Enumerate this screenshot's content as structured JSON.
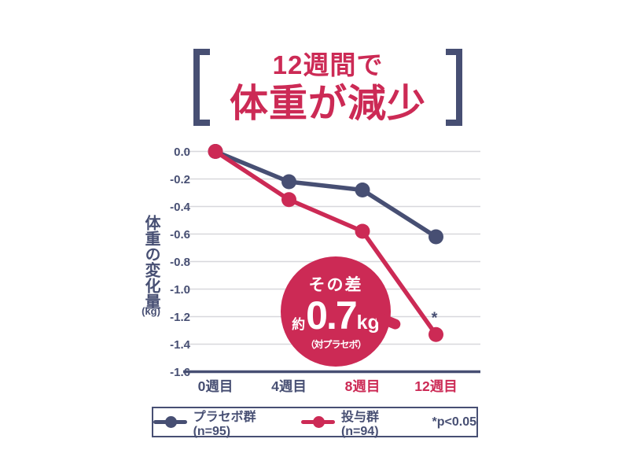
{
  "colors": {
    "navy": "#474f73",
    "crimson": "#cc2a55",
    "grid": "#d8d8dc",
    "background": "#ffffff"
  },
  "title": {
    "line1": "12週間で",
    "line2": "体重が減少"
  },
  "chart_data": {
    "type": "line",
    "categories": [
      "0週目",
      "4週目",
      "8週目",
      "12週目"
    ],
    "x_label_colors": [
      "#474f73",
      "#474f73",
      "#cc2a55",
      "#cc2a55"
    ],
    "series": [
      {
        "name": "プラセボ群 (n=95)",
        "color": "#474f73",
        "values": [
          0.0,
          -0.22,
          -0.28,
          -0.62
        ]
      },
      {
        "name": "投与群 (n=94)",
        "color": "#cc2a55",
        "values": [
          0.0,
          -0.35,
          -0.58,
          -1.33
        ]
      }
    ],
    "ylabel": "体重の変化量",
    "ylabel_unit": "(kg)",
    "ylim": [
      -1.6,
      0.0
    ],
    "ytick_step": 0.2,
    "yticks": [
      "0.0",
      "-0.2",
      "-0.4",
      "-0.6",
      "-0.8",
      "-1.0",
      "-1.2",
      "-1.4",
      "-1.6"
    ],
    "grid": true,
    "legend_position": "bottom",
    "significance_marker": {
      "text": "*",
      "series_index": 1,
      "point_index": 3
    }
  },
  "badge": {
    "line1": "その差",
    "value_prefix": "約",
    "value": "0.7",
    "unit": "kg",
    "note": "（対プラセボ）"
  },
  "legend": {
    "items": [
      {
        "label": "プラセボ群 (n=95)",
        "color": "#474f73"
      },
      {
        "label": "投与群 (n=94)",
        "color": "#cc2a55"
      }
    ],
    "significance": "*p<0.05"
  }
}
